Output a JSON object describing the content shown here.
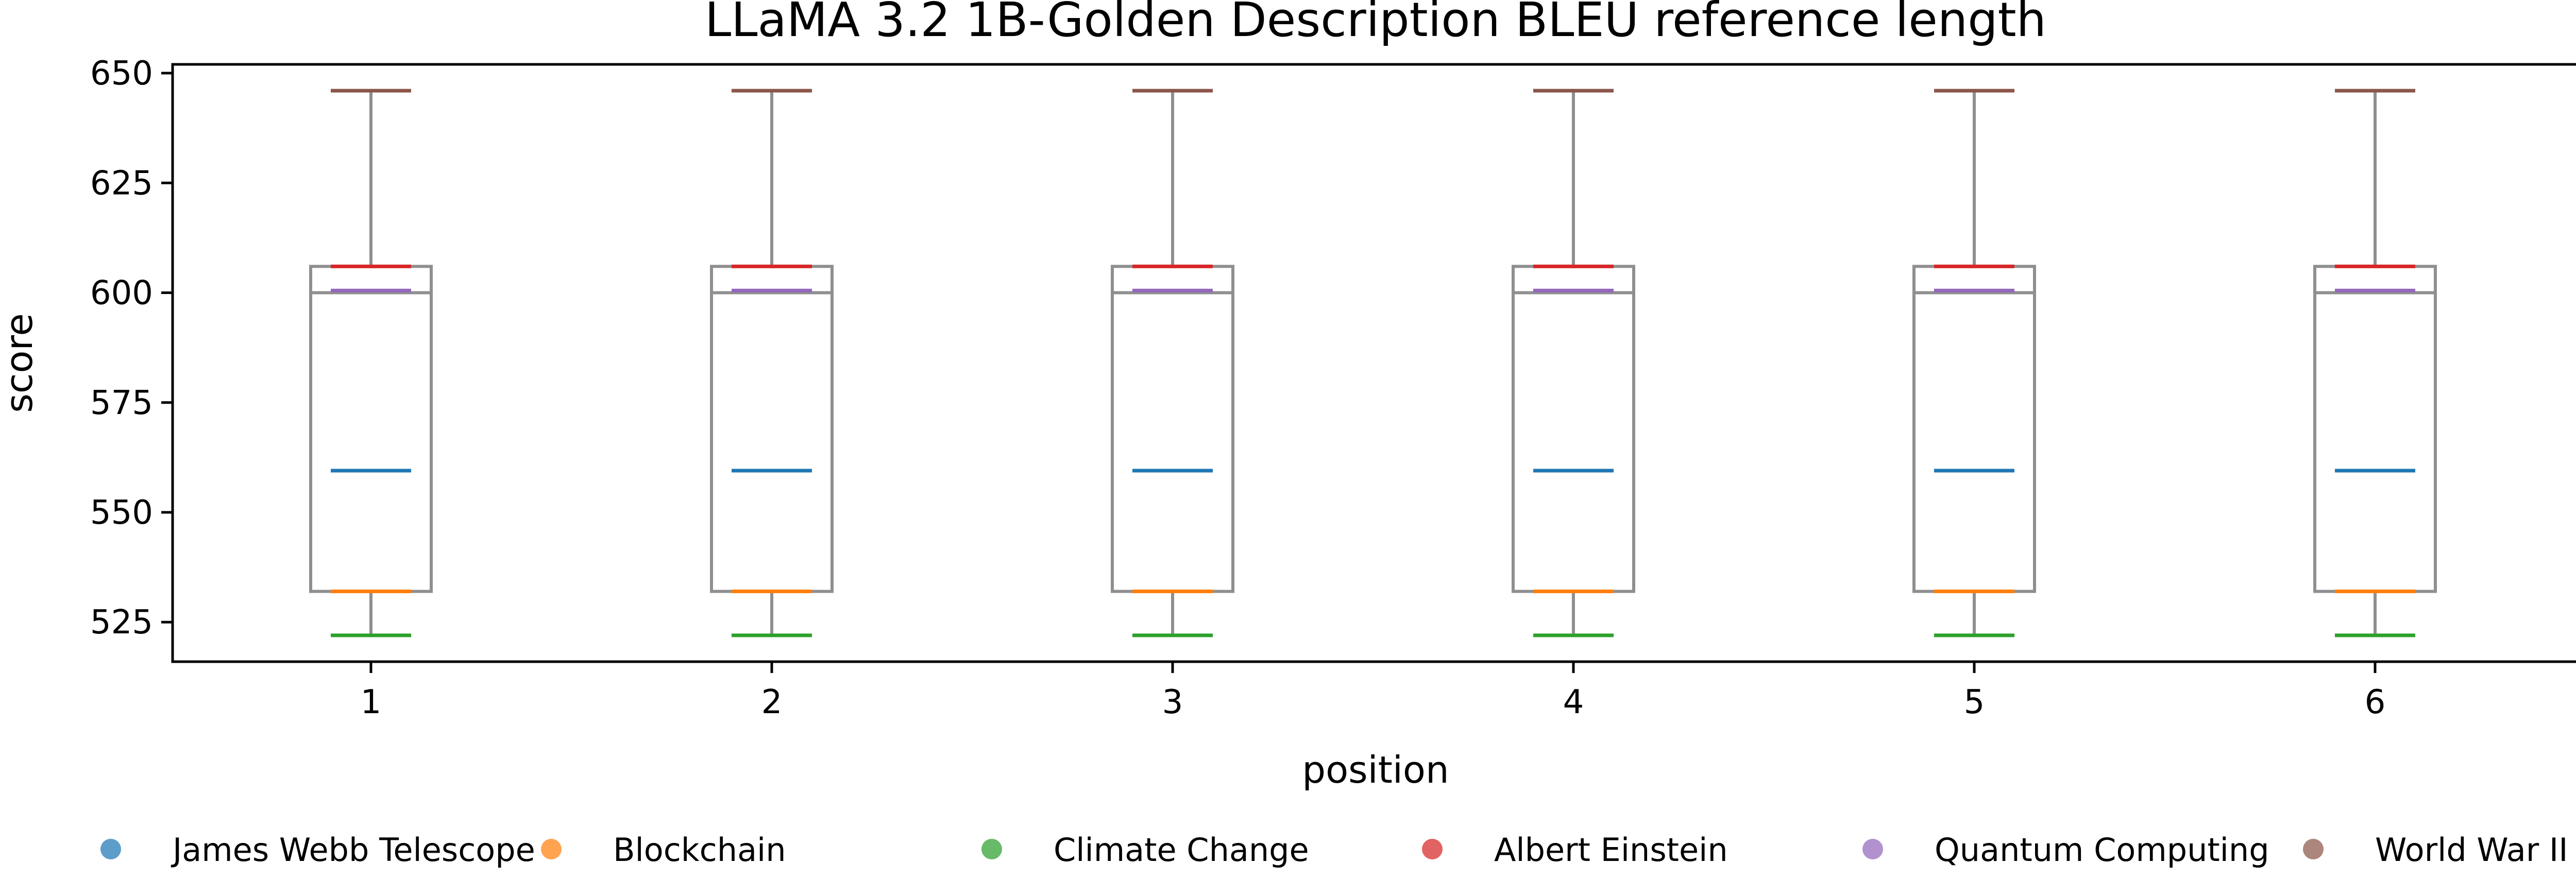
{
  "chart_data": {
    "type": "box",
    "title": "LLaMA 3.2 1B-Golden Description BLEU reference length",
    "xlabel": "position",
    "ylabel": "score",
    "categories": [
      "1",
      "2",
      "3",
      "4",
      "5",
      "6"
    ],
    "y_ticks": [
      525,
      550,
      575,
      600,
      625,
      650
    ],
    "ylim": [
      516,
      652
    ],
    "box": {
      "whisker_low": 522,
      "q1": 532,
      "median": 600,
      "q3": 606,
      "whisker_high": 646
    },
    "series": [
      {
        "name": "James Webb Telescope",
        "color": "#1f77b4",
        "values": [
          559.5,
          559.5,
          559.5,
          559.5,
          559.5,
          559.5
        ]
      },
      {
        "name": "Blockchain",
        "color": "#ff7f0e",
        "values": [
          532,
          532,
          532,
          532,
          532,
          532
        ]
      },
      {
        "name": "Climate Change",
        "color": "#2ca02c",
        "values": [
          522,
          522,
          522,
          522,
          522,
          522
        ]
      },
      {
        "name": "Albert Einstein",
        "color": "#d62728",
        "values": [
          606,
          606,
          606,
          606,
          606,
          606
        ]
      },
      {
        "name": "Quantum Computing",
        "color": "#9467bd",
        "values": [
          600.5,
          600.5,
          600.5,
          600.5,
          600.5,
          600.5
        ]
      },
      {
        "name": "World War II",
        "color": "#8c564b",
        "values": [
          646,
          646,
          646,
          646,
          646,
          646
        ]
      }
    ],
    "legend_position": "bottom",
    "grid": false
  }
}
